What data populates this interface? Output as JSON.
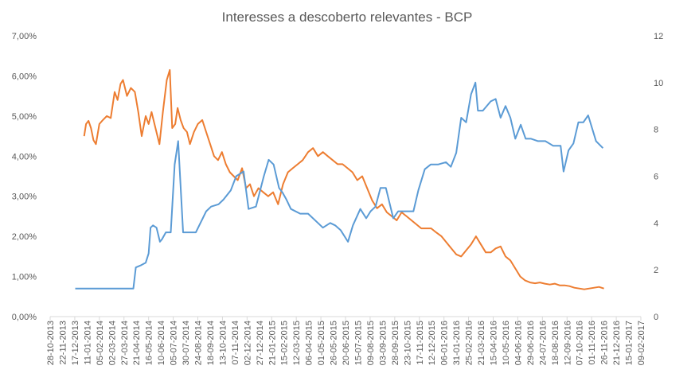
{
  "chart_data": {
    "type": "line",
    "title": "Interesses a descoberto relevantes - BCP",
    "xlabel": "",
    "ylabel": "",
    "y_left_ticks": [
      "0,00%",
      "1,00%",
      "2,00%",
      "3,00%",
      "4,00%",
      "5,00%",
      "6,00%",
      "7,00%"
    ],
    "y_left_lim": [
      0,
      0.07
    ],
    "y_right_ticks": [
      "0",
      "2",
      "4",
      "6",
      "8",
      "10",
      "12"
    ],
    "y_right_lim": [
      0,
      12
    ],
    "x_ticks": [
      "28-10-2013",
      "17-12-2013",
      "05-02-2014",
      "27-03-2014",
      "16-05-2014",
      "05-07-2014",
      "24-08-2014",
      "13-10-2014",
      "02-12-2014",
      "21-01-2015",
      "12-03-2015",
      "01-05-2015",
      "20-06-2015",
      "09-08-2015",
      "28-09-2015",
      "17-11-2015",
      "06-01-2016",
      "25-02-2016",
      "15-04-2016",
      "04-06-2016",
      "24-07-2016",
      "12-09-2016",
      "01-11-2016",
      "21-12-2016",
      "09-02-2017"
    ],
    "x_ticks_mid": [
      "22-11-2013",
      "11-01-2014",
      "02-03-2014",
      "21-04-2014",
      "10-06-2014",
      "30-07-2014",
      "18-09-2014",
      "07-11-2014",
      "27-12-2014",
      "15-02-2015",
      "06-04-2015",
      "26-05-2015",
      "15-07-2015",
      "03-09-2015",
      "23-10-2015",
      "12-12-2015",
      "31-01-2016",
      "21-03-2016",
      "10-05-2016",
      "29-06-2016",
      "18-08-2016",
      "07-10-2016",
      "26-11-2016",
      "15-01-2017"
    ],
    "grid": false,
    "series": [
      {
        "axis": "left",
        "color": "#ED7D31",
        "x": [
          "2014-01-05",
          "2014-01-09",
          "2014-01-14",
          "2014-01-19",
          "2014-01-24",
          "2014-01-29",
          "2014-02-05",
          "2014-02-12",
          "2014-02-20",
          "2014-02-28",
          "2014-03-08",
          "2014-03-14",
          "2014-03-20",
          "2014-03-25",
          "2014-04-02",
          "2014-04-10",
          "2014-04-18",
          "2014-04-25",
          "2014-05-02",
          "2014-05-10",
          "2014-05-16",
          "2014-05-22",
          "2014-05-30",
          "2014-06-07",
          "2014-06-14",
          "2014-06-22",
          "2014-06-28",
          "2014-07-03",
          "2014-07-09",
          "2014-07-14",
          "2014-07-20",
          "2014-07-26",
          "2014-08-02",
          "2014-08-08",
          "2014-08-16",
          "2014-08-24",
          "2014-09-02",
          "2014-09-10",
          "2014-09-18",
          "2014-09-26",
          "2014-10-04",
          "2014-10-12",
          "2014-10-20",
          "2014-10-28",
          "2014-11-05",
          "2014-11-13",
          "2014-11-22",
          "2014-11-30",
          "2014-12-08",
          "2014-12-16",
          "2014-12-25",
          "2015-01-04",
          "2015-01-14",
          "2015-01-24",
          "2015-02-03",
          "2015-02-13",
          "2015-02-23",
          "2015-03-05",
          "2015-03-15",
          "2015-03-25",
          "2015-04-05",
          "2015-04-15",
          "2015-04-25",
          "2015-05-05",
          "2015-05-15",
          "2015-05-25",
          "2015-06-04",
          "2015-06-14",
          "2015-06-24",
          "2015-07-04",
          "2015-07-14",
          "2015-07-24",
          "2015-08-03",
          "2015-08-13",
          "2015-08-23",
          "2015-09-02",
          "2015-09-12",
          "2015-09-22",
          "2015-10-02",
          "2015-10-12",
          "2015-10-22",
          "2015-11-01",
          "2015-11-11",
          "2015-11-21",
          "2015-12-01",
          "2015-12-11",
          "2015-12-21",
          "2016-01-01",
          "2016-01-11",
          "2016-01-21",
          "2016-01-31",
          "2016-02-10",
          "2016-02-20",
          "2016-03-01",
          "2016-03-11",
          "2016-03-21",
          "2016-03-31",
          "2016-04-10",
          "2016-04-20",
          "2016-04-30",
          "2016-05-10",
          "2016-05-20",
          "2016-05-30",
          "2016-06-09",
          "2016-06-19",
          "2016-06-29",
          "2016-07-09",
          "2016-07-19",
          "2016-07-29",
          "2016-08-08",
          "2016-08-18",
          "2016-08-28",
          "2016-09-07",
          "2016-09-17",
          "2016-09-27",
          "2016-10-07",
          "2016-10-17",
          "2016-10-27",
          "2016-11-06",
          "2016-11-16",
          "2016-11-26"
        ],
        "values": [
          0.045,
          0.048,
          0.0488,
          0.047,
          0.044,
          0.043,
          0.048,
          0.049,
          0.05,
          0.0495,
          0.056,
          0.054,
          0.058,
          0.059,
          0.055,
          0.057,
          0.056,
          0.051,
          0.045,
          0.05,
          0.048,
          0.051,
          0.047,
          0.043,
          0.051,
          0.059,
          0.0615,
          0.047,
          0.048,
          0.052,
          0.049,
          0.047,
          0.046,
          0.043,
          0.046,
          0.048,
          0.049,
          0.046,
          0.043,
          0.04,
          0.039,
          0.041,
          0.038,
          0.036,
          0.035,
          0.034,
          0.037,
          0.032,
          0.033,
          0.03,
          0.032,
          0.031,
          0.03,
          0.031,
          0.028,
          0.033,
          0.036,
          0.037,
          0.038,
          0.039,
          0.041,
          0.042,
          0.04,
          0.041,
          0.04,
          0.039,
          0.038,
          0.038,
          0.037,
          0.036,
          0.034,
          0.035,
          0.032,
          0.029,
          0.027,
          0.028,
          0.026,
          0.025,
          0.024,
          0.026,
          0.025,
          0.024,
          0.023,
          0.022,
          0.022,
          0.022,
          0.021,
          0.02,
          0.0185,
          0.017,
          0.0155,
          0.015,
          0.0165,
          0.018,
          0.02,
          0.018,
          0.016,
          0.016,
          0.017,
          0.0175,
          0.015,
          0.014,
          0.012,
          0.01,
          0.009,
          0.0085,
          0.0083,
          0.0085,
          0.0082,
          0.008,
          0.0082,
          0.0078,
          0.0078,
          0.0076,
          0.0072,
          0.007,
          0.0068,
          0.007,
          0.0072,
          0.0074,
          0.007
        ]
      },
      {
        "axis": "right",
        "color": "#5B9BD5",
        "x": [
          "2013-12-18",
          "2014-01-15",
          "2014-03-01",
          "2014-04-15",
          "2014-04-20",
          "2014-05-01",
          "2014-05-10",
          "2014-05-16",
          "2014-05-20",
          "2014-05-25",
          "2014-06-01",
          "2014-06-08",
          "2014-06-12",
          "2014-06-20",
          "2014-06-30",
          "2014-07-08",
          "2014-07-15",
          "2014-07-25",
          "2014-08-05",
          "2014-08-20",
          "2014-09-10",
          "2014-09-20",
          "2014-10-05",
          "2014-10-15",
          "2014-10-30",
          "2014-11-10",
          "2014-11-25",
          "2014-12-05",
          "2014-12-20",
          "2015-01-05",
          "2015-01-15",
          "2015-01-25",
          "2015-02-05",
          "2015-02-12",
          "2015-02-20",
          "2015-03-01",
          "2015-03-20",
          "2015-04-05",
          "2015-04-25",
          "2015-05-05",
          "2015-05-20",
          "2015-05-30",
          "2015-06-10",
          "2015-06-25",
          "2015-07-05",
          "2015-07-20",
          "2015-08-01",
          "2015-08-10",
          "2015-08-20",
          "2015-08-30",
          "2015-09-10",
          "2015-09-25",
          "2015-10-05",
          "2015-10-15",
          "2015-11-05",
          "2015-11-15",
          "2015-11-28",
          "2015-12-10",
          "2015-12-25",
          "2016-01-10",
          "2016-01-20",
          "2016-01-31",
          "2016-02-10",
          "2016-02-20",
          "2016-03-01",
          "2016-03-10",
          "2016-03-15",
          "2016-03-25",
          "2016-04-10",
          "2016-04-20",
          "2016-04-30",
          "2016-05-10",
          "2016-05-20",
          "2016-05-30",
          "2016-06-10",
          "2016-06-20",
          "2016-07-01",
          "2016-07-15",
          "2016-07-30",
          "2016-08-15",
          "2016-08-30",
          "2016-09-05",
          "2016-09-15",
          "2016-09-25",
          "2016-10-05",
          "2016-10-15",
          "2016-10-25",
          "2016-11-10",
          "2016-11-24"
        ],
        "values": [
          1.2,
          1.2,
          1.2,
          1.2,
          2.1,
          2.2,
          2.3,
          2.7,
          3.8,
          3.9,
          3.8,
          3.2,
          3.3,
          3.6,
          3.6,
          6.5,
          7.5,
          3.6,
          3.6,
          3.6,
          4.5,
          4.7,
          4.8,
          5.0,
          5.4,
          6.0,
          6.2,
          4.6,
          4.7,
          6.0,
          6.7,
          6.5,
          5.5,
          5.3,
          5.0,
          4.6,
          4.4,
          4.4,
          4.0,
          3.8,
          4.0,
          3.9,
          3.7,
          3.2,
          3.9,
          4.6,
          4.2,
          4.5,
          4.7,
          5.5,
          5.5,
          4.2,
          4.5,
          4.5,
          4.5,
          5.4,
          6.3,
          6.5,
          6.5,
          6.6,
          6.4,
          7.0,
          8.5,
          8.3,
          9.5,
          10.0,
          8.8,
          8.8,
          9.2,
          9.3,
          8.5,
          9.0,
          8.5,
          7.6,
          8.2,
          7.6,
          7.6,
          7.5,
          7.5,
          7.3,
          7.3,
          6.2,
          7.1,
          7.4,
          8.3,
          8.3,
          8.6,
          7.5,
          7.2
        ]
      }
    ]
  }
}
